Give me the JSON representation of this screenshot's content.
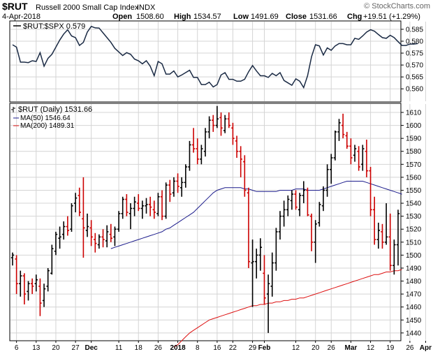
{
  "header": {
    "symbol": "$RUT",
    "name": "Russell 2000 Small Cap Index",
    "exchange": "INDX",
    "watermark": "© StockCharts.com",
    "date": "4-Apr-2018",
    "open_label": "Open",
    "open": "1508.60",
    "high_label": "High",
    "high": "1534.57",
    "low_label": "Low",
    "low": "1491.69",
    "close_label": "Close",
    "close": "1531.66",
    "chg_label": "Chg",
    "chg": "+19.51 (+1.29%)"
  },
  "colors": {
    "up": "#000000",
    "down": "#cc0000",
    "ma50": "#1c1c8c",
    "ma200": "#dd1111",
    "ratio": "#1a2a44",
    "grid": "#d4d4d4"
  },
  "chart_data": [
    {
      "type": "line",
      "title": "$RUT:$SPX 0.579",
      "grid": true,
      "ylim": [
        0.5545,
        0.5885
      ],
      "y_ticks": [
        "0.585",
        "0.580",
        "0.575",
        "0.570",
        "0.565",
        "0.560"
      ],
      "series": [
        {
          "name": "$RUT:$SPX",
          "values": [
            0.5785,
            0.5775,
            0.5712,
            0.5712,
            0.571,
            0.5718,
            0.5715,
            0.5752,
            0.5695,
            0.5728,
            0.5745,
            0.5775,
            0.5805,
            0.583,
            0.5848,
            0.5822,
            0.5815,
            0.5782,
            0.5795,
            0.5838,
            0.5862,
            0.5856,
            0.5855,
            0.5835,
            0.5815,
            0.5795,
            0.577,
            0.5755,
            0.574,
            0.5752,
            0.5745,
            0.5725,
            0.5718,
            0.5705,
            0.5718,
            0.5695,
            0.5655,
            0.5715,
            0.5705,
            0.5662,
            0.5662,
            0.5675,
            0.565,
            0.5658,
            0.5668,
            0.5678,
            0.5648,
            0.5648,
            0.5618,
            0.5618,
            0.5628,
            0.5608,
            0.5618,
            0.5658,
            0.5668,
            0.564,
            0.564,
            0.5632,
            0.5632,
            0.564,
            0.5672,
            0.5698,
            0.5675,
            0.5655,
            0.5655,
            0.5648,
            0.5665,
            0.5655,
            0.5668,
            0.5635,
            0.5625,
            0.5615,
            0.5642,
            0.5632,
            0.5605,
            0.5655,
            0.5735,
            0.5785,
            0.578,
            0.5742,
            0.5772,
            0.5762,
            0.578,
            0.579,
            0.579,
            0.5785,
            0.5785,
            0.5812,
            0.5808,
            0.5822,
            0.5838,
            0.5848,
            0.5842,
            0.5828,
            0.5815,
            0.5812,
            0.5825,
            0.5815,
            0.5798,
            0.5782,
            0.5782,
            0.5788,
            0.5788,
            0.579
          ]
        }
      ]
    },
    {
      "type": "bar",
      "title": "$RUT (Daily) 1531.66",
      "grid": true,
      "ylim": [
        1434,
        1617
      ],
      "y_ticks": [
        "1610",
        "1600",
        "1590",
        "1580",
        "1570",
        "1560",
        "1550",
        "1540",
        "1530",
        "1520",
        "1510",
        "1500",
        "1490",
        "1480",
        "1470",
        "1460",
        "1450",
        "1440"
      ],
      "x_ticks": [
        "6",
        "13",
        "20",
        "27",
        "Dec",
        "11",
        "18",
        "26",
        "2018",
        "8",
        "16",
        "22",
        "29",
        "Feb",
        "12",
        "20",
        "26",
        "Mar",
        "12",
        "19",
        "26",
        "Apr"
      ],
      "x_tick_index": [
        1,
        6,
        11,
        16,
        20,
        27,
        32,
        37,
        42,
        47,
        52,
        56,
        61,
        64,
        72,
        77,
        81,
        86,
        91,
        96,
        101,
        105
      ],
      "legend": [
        {
          "key": "price",
          "label": "$RUT (Daily) 1531.66"
        },
        {
          "key": "ma50",
          "label": "MA(50) 1546.64"
        },
        {
          "key": "ma200",
          "label": "MA(200) 1489.31"
        }
      ],
      "ohlc_columns": [
        "open",
        "high",
        "low",
        "close"
      ],
      "ohlc": [
        [
          1498,
          1502,
          1492,
          1500
        ],
        [
          1497,
          1500,
          1470,
          1478
        ],
        [
          1478,
          1488,
          1468,
          1484
        ],
        [
          1484,
          1486,
          1462,
          1470
        ],
        [
          1472,
          1480,
          1465,
          1478
        ],
        [
          1478,
          1482,
          1470,
          1476
        ],
        [
          1478,
          1485,
          1472,
          1481
        ],
        [
          1476,
          1482,
          1453,
          1463
        ],
        [
          1465,
          1478,
          1460,
          1474
        ],
        [
          1476,
          1490,
          1472,
          1488
        ],
        [
          1486,
          1508,
          1485,
          1505
        ],
        [
          1503,
          1518,
          1500,
          1516
        ],
        [
          1513,
          1522,
          1505,
          1514
        ],
        [
          1516,
          1526,
          1512,
          1522
        ],
        [
          1522,
          1530,
          1515,
          1519
        ],
        [
          1520,
          1540,
          1518,
          1538
        ],
        [
          1540,
          1548,
          1533,
          1544
        ],
        [
          1546,
          1552,
          1530,
          1533
        ],
        [
          1528,
          1560,
          1498,
          1521
        ],
        [
          1519,
          1532,
          1514,
          1522
        ],
        [
          1521,
          1527,
          1507,
          1514
        ],
        [
          1512,
          1517,
          1502,
          1509
        ],
        [
          1508,
          1516,
          1505,
          1514
        ],
        [
          1514,
          1520,
          1506,
          1512
        ],
        [
          1511,
          1523,
          1506,
          1518
        ],
        [
          1516,
          1524,
          1510,
          1513
        ],
        [
          1514,
          1522,
          1507,
          1520
        ],
        [
          1520,
          1534,
          1518,
          1532
        ],
        [
          1532,
          1545,
          1528,
          1543
        ],
        [
          1543,
          1547,
          1530,
          1533
        ],
        [
          1532,
          1540,
          1520,
          1536
        ],
        [
          1536,
          1545,
          1530,
          1541
        ],
        [
          1540,
          1547,
          1534,
          1536
        ],
        [
          1536,
          1542,
          1528,
          1538
        ],
        [
          1538,
          1544,
          1532,
          1539
        ],
        [
          1539,
          1545,
          1530,
          1537
        ],
        [
          1535,
          1542,
          1528,
          1533
        ],
        [
          1532,
          1548,
          1530,
          1545
        ],
        [
          1545,
          1550,
          1527,
          1530
        ],
        [
          1530,
          1556,
          1528,
          1554
        ],
        [
          1554,
          1558,
          1541,
          1547
        ],
        [
          1548,
          1560,
          1545,
          1557
        ],
        [
          1557,
          1563,
          1548,
          1553
        ],
        [
          1552,
          1560,
          1545,
          1556
        ],
        [
          1556,
          1570,
          1552,
          1568
        ],
        [
          1568,
          1588,
          1565,
          1585
        ],
        [
          1585,
          1598,
          1579,
          1582
        ],
        [
          1582,
          1590,
          1570,
          1574
        ],
        [
          1574,
          1585,
          1570,
          1582
        ],
        [
          1580,
          1598,
          1576,
          1595
        ],
        [
          1595,
          1607,
          1590,
          1604
        ],
        [
          1604,
          1608,
          1595,
          1600
        ],
        [
          1600,
          1615,
          1598,
          1605
        ],
        [
          1606,
          1610,
          1592,
          1598
        ],
        [
          1596,
          1608,
          1594,
          1605
        ],
        [
          1605,
          1610,
          1598,
          1600
        ],
        [
          1598,
          1602,
          1585,
          1590
        ],
        [
          1588,
          1592,
          1575,
          1580
        ],
        [
          1580,
          1584,
          1560,
          1574
        ],
        [
          1572,
          1577,
          1545,
          1550
        ],
        [
          1548,
          1552,
          1490,
          1495
        ],
        [
          1494,
          1512,
          1460,
          1495
        ],
        [
          1495,
          1505,
          1482,
          1500
        ],
        [
          1500,
          1513,
          1488,
          1506
        ],
        [
          1486,
          1500,
          1462,
          1467
        ],
        [
          1470,
          1485,
          1440,
          1478
        ],
        [
          1476,
          1502,
          1468,
          1494
        ],
        [
          1494,
          1521,
          1488,
          1518
        ],
        [
          1518,
          1534,
          1512,
          1530
        ],
        [
          1530,
          1542,
          1522,
          1535
        ],
        [
          1535,
          1546,
          1530,
          1543
        ],
        [
          1542,
          1550,
          1535,
          1547
        ],
        [
          1547,
          1550,
          1535,
          1537
        ],
        [
          1535,
          1548,
          1530,
          1546
        ],
        [
          1546,
          1557,
          1540,
          1550
        ],
        [
          1550,
          1552,
          1530,
          1531
        ],
        [
          1530,
          1532,
          1503,
          1510
        ],
        [
          1510,
          1527,
          1494,
          1524
        ],
        [
          1525,
          1541,
          1522,
          1539
        ],
        [
          1538,
          1553,
          1534,
          1550
        ],
        [
          1550,
          1570,
          1545,
          1566
        ],
        [
          1566,
          1578,
          1555,
          1575
        ],
        [
          1575,
          1596,
          1573,
          1595
        ],
        [
          1595,
          1605,
          1588,
          1602
        ],
        [
          1600,
          1609,
          1590,
          1593
        ],
        [
          1592,
          1595,
          1582,
          1584
        ],
        [
          1584,
          1590,
          1570,
          1575
        ],
        [
          1577,
          1585,
          1572,
          1582
        ],
        [
          1580,
          1584,
          1565,
          1568
        ],
        [
          1570,
          1585,
          1565,
          1582
        ],
        [
          1580,
          1589,
          1560,
          1565
        ],
        [
          1565,
          1568,
          1530,
          1535
        ],
        [
          1535,
          1545,
          1508,
          1512
        ],
        [
          1512,
          1525,
          1505,
          1519
        ],
        [
          1518,
          1524,
          1505,
          1510
        ],
        [
          1510,
          1540,
          1508,
          1514
        ],
        [
          1514,
          1532,
          1488,
          1492
        ],
        [
          1492,
          1512,
          1485,
          1508
        ],
        [
          1508,
          1535,
          1492,
          1532
        ]
      ],
      "series": [
        {
          "name": "MA(50) 1546.64",
          "values": [
            null,
            null,
            null,
            null,
            null,
            null,
            null,
            null,
            null,
            null,
            null,
            null,
            null,
            null,
            null,
            null,
            null,
            null,
            null,
            null,
            null,
            null,
            null,
            null,
            null,
            1505,
            1506,
            1507,
            1508,
            1509,
            1510,
            1511,
            1512,
            1513,
            1514,
            1515,
            1516,
            1517,
            1518,
            1520,
            1521,
            1523,
            1525,
            1527,
            1529,
            1531,
            1533,
            1536,
            1539,
            1542,
            1545,
            1548,
            1550,
            1551,
            1552,
            1552,
            1552,
            1552,
            1552,
            1551,
            1551,
            1550,
            1549,
            1549,
            1549,
            1549,
            1549,
            1549,
            1550,
            1550,
            1550,
            1550,
            1551,
            1551,
            1551,
            1550,
            1550,
            1550,
            1550,
            1551,
            1552,
            1553,
            1554,
            1555,
            1556,
            1557,
            1557,
            1557,
            1557,
            1557,
            1556,
            1555,
            1554,
            1553,
            1552,
            1551,
            1550,
            1549,
            1548,
            1547
          ]
        },
        {
          "name": "MA(200) 1489.31",
          "values": [
            null,
            null,
            null,
            null,
            null,
            null,
            null,
            null,
            null,
            null,
            null,
            null,
            null,
            null,
            null,
            null,
            null,
            null,
            null,
            null,
            null,
            null,
            null,
            null,
            null,
            null,
            null,
            null,
            null,
            null,
            null,
            null,
            null,
            null,
            null,
            null,
            null,
            null,
            null,
            null,
            null,
            1429,
            1431,
            1434,
            1437,
            1440,
            1442,
            1444,
            1446,
            1448,
            1450,
            1451,
            1452,
            1453,
            1454,
            1455,
            1456,
            1457,
            1458,
            1459,
            1460,
            1461,
            1461,
            1462,
            1462,
            1463,
            1463,
            1464,
            1464,
            1465,
            1465,
            1466,
            1466,
            1467,
            1467,
            1468,
            1469,
            1470,
            1471,
            1472,
            1473,
            1474,
            1475,
            1476,
            1477,
            1478,
            1479,
            1480,
            1481,
            1482,
            1483,
            1484,
            1485,
            1485,
            1486,
            1487,
            1487,
            1488,
            1488,
            1489
          ]
        }
      ]
    }
  ]
}
